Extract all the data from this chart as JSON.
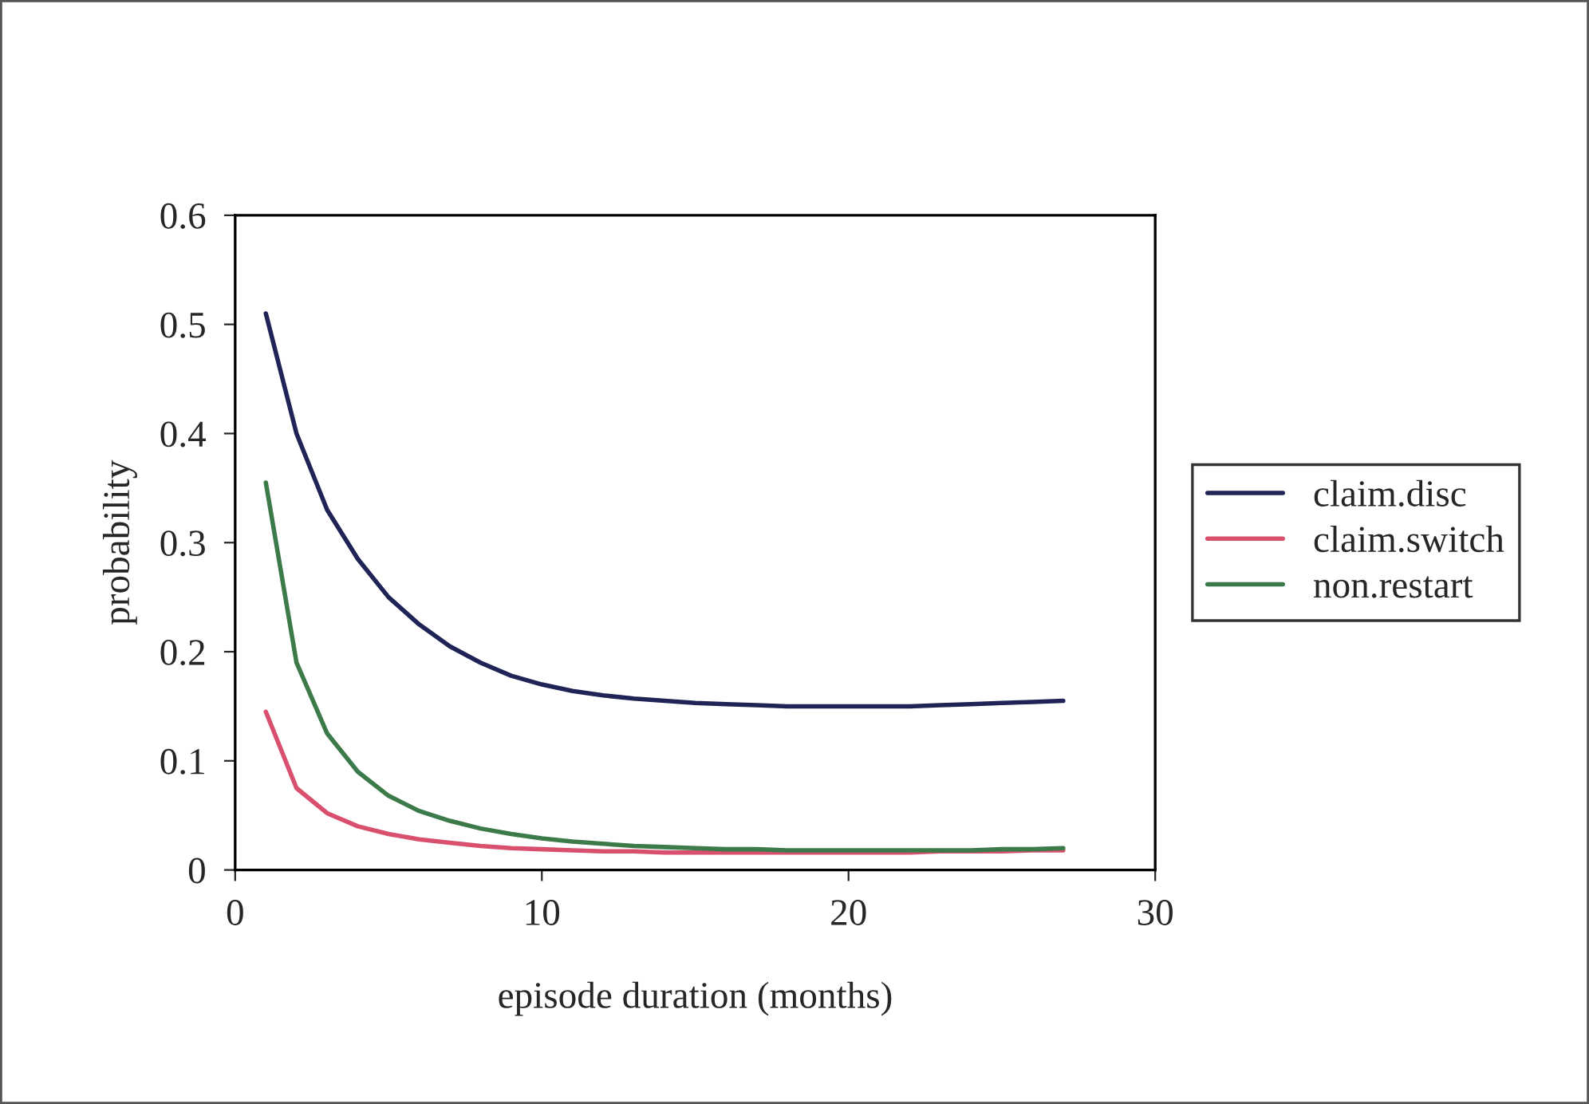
{
  "chart_data": {
    "type": "line",
    "xlabel": "episode duration (months)",
    "ylabel": "probability",
    "x": [
      1,
      2,
      3,
      4,
      5,
      6,
      7,
      8,
      9,
      10,
      11,
      12,
      13,
      14,
      15,
      16,
      17,
      18,
      19,
      20,
      21,
      22,
      23,
      24,
      25,
      26,
      27
    ],
    "series": [
      {
        "name": "claim.disc",
        "color": "#1f2356",
        "values": [
          0.51,
          0.4,
          0.33,
          0.285,
          0.25,
          0.225,
          0.205,
          0.19,
          0.178,
          0.17,
          0.164,
          0.16,
          0.157,
          0.155,
          0.153,
          0.152,
          0.151,
          0.15,
          0.15,
          0.15,
          0.15,
          0.15,
          0.151,
          0.152,
          0.153,
          0.154,
          0.155
        ]
      },
      {
        "name": "claim.switch",
        "color": "#d9506e",
        "values": [
          0.145,
          0.075,
          0.052,
          0.04,
          0.033,
          0.028,
          0.025,
          0.022,
          0.02,
          0.019,
          0.018,
          0.017,
          0.017,
          0.016,
          0.016,
          0.016,
          0.016,
          0.016,
          0.016,
          0.016,
          0.016,
          0.016,
          0.017,
          0.017,
          0.017,
          0.018,
          0.018
        ]
      },
      {
        "name": "non.restart",
        "color": "#3d7a4a",
        "values": [
          0.355,
          0.19,
          0.125,
          0.09,
          0.068,
          0.054,
          0.045,
          0.038,
          0.033,
          0.029,
          0.026,
          0.024,
          0.022,
          0.021,
          0.02,
          0.019,
          0.019,
          0.018,
          0.018,
          0.018,
          0.018,
          0.018,
          0.018,
          0.018,
          0.019,
          0.019,
          0.02
        ]
      }
    ],
    "xlim": [
      0,
      30
    ],
    "xticks": [
      0,
      10,
      20,
      30
    ],
    "ylim": [
      0,
      0.6
    ],
    "yticks": [
      0,
      0.1,
      0.2,
      0.3,
      0.4,
      0.5,
      0.6
    ],
    "grid": false,
    "legend": "right",
    "marker": "none",
    "line_style": "solid"
  }
}
